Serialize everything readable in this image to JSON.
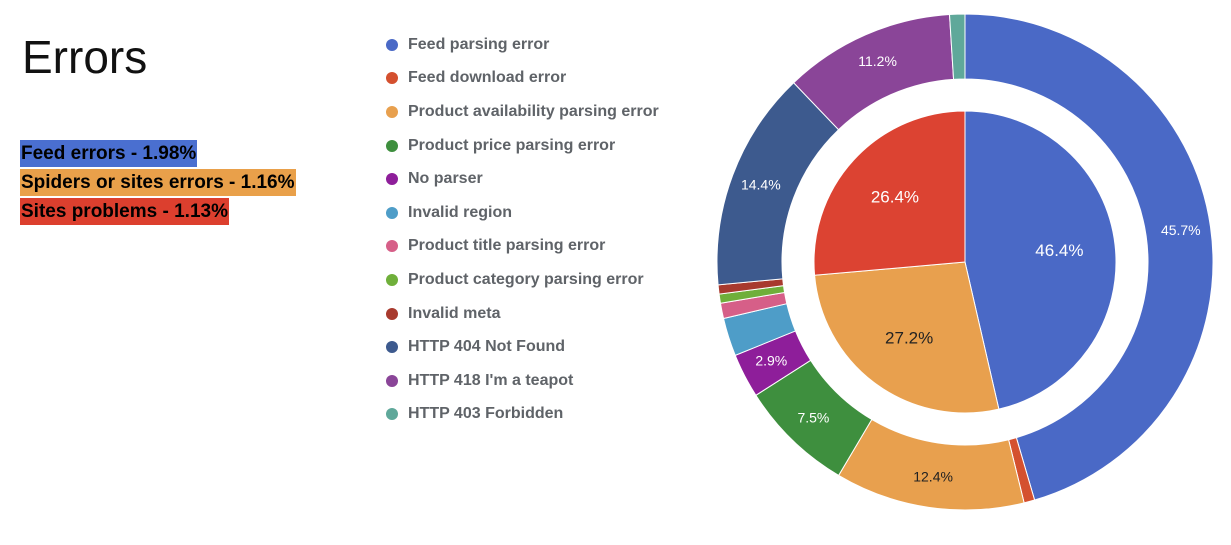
{
  "title": "Errors",
  "summary": [
    {
      "text": "Feed errors - 1.98%",
      "color": "#4a6fd0"
    },
    {
      "text": "Spiders or sites errors - 1.16%",
      "color": "#e9a04a"
    },
    {
      "text": "Sites problems - 1.13%",
      "color": "#dc3f2e"
    }
  ],
  "chart_data": {
    "type": "pie",
    "subtype": "nested-donut",
    "legend": [
      {
        "label": "Feed parsing error",
        "color": "#4a69c6"
      },
      {
        "label": "Feed download error",
        "color": "#d4502f"
      },
      {
        "label": "Product availability parsing error",
        "color": "#e8a04e"
      },
      {
        "label": "Product price parsing error",
        "color": "#3e8f3e"
      },
      {
        "label": "No parser",
        "color": "#8e1e9a"
      },
      {
        "label": "Invalid region",
        "color": "#4e9dc8"
      },
      {
        "label": "Product title parsing error",
        "color": "#d65f88"
      },
      {
        "label": "Product category parsing error",
        "color": "#6faf3a"
      },
      {
        "label": "Invalid meta",
        "color": "#a83a2e"
      },
      {
        "label": "HTTP 404 Not Found",
        "color": "#3d5a8e"
      },
      {
        "label": "HTTP 418 I'm a teapot",
        "color": "#8a4598"
      },
      {
        "label": "HTTP 403 Forbidden",
        "color": "#5fa89a"
      }
    ],
    "inner_ring": {
      "slices": [
        {
          "name": "Feed errors",
          "value": 46.4,
          "label": "46.4%",
          "color": "#4a69c6",
          "label_color": "#ffffff"
        },
        {
          "name": "Spiders or sites errors",
          "value": 27.2,
          "label": "27.2%",
          "color": "#e8a04e",
          "label_color": "#222222"
        },
        {
          "name": "Sites problems",
          "value": 26.4,
          "label": "26.4%",
          "color": "#dc4332",
          "label_color": "#ffffff"
        }
      ]
    },
    "outer_ring": {
      "slices": [
        {
          "name": "Feed parsing error",
          "value": 45.7,
          "label": "45.7%",
          "color": "#4a69c6",
          "label_color": "#ffffff"
        },
        {
          "name": "Feed download error",
          "value": 0.7,
          "label": "",
          "color": "#d4502f",
          "label_color": "#ffffff"
        },
        {
          "name": "Product availability parsing error",
          "value": 12.4,
          "label": "12.4%",
          "color": "#e8a04e",
          "label_color": "#222222"
        },
        {
          "name": "Product price parsing error",
          "value": 7.5,
          "label": "7.5%",
          "color": "#3e8f3e",
          "label_color": "#ffffff"
        },
        {
          "name": "No parser",
          "value": 2.9,
          "label": "2.9%",
          "color": "#8e1e9a",
          "label_color": "#ffffff"
        },
        {
          "name": "Invalid region",
          "value": 2.5,
          "label": "",
          "color": "#4e9dc8",
          "label_color": "#ffffff"
        },
        {
          "name": "Product title parsing error",
          "value": 1.0,
          "label": "",
          "color": "#d65f88",
          "label_color": "#ffffff"
        },
        {
          "name": "Product category parsing error",
          "value": 0.6,
          "label": "",
          "color": "#6faf3a",
          "label_color": "#ffffff"
        },
        {
          "name": "Invalid meta",
          "value": 0.6,
          "label": "",
          "color": "#a83a2e",
          "label_color": "#ffffff"
        },
        {
          "name": "HTTP 404 Not Found",
          "value": 14.4,
          "label": "14.4%",
          "color": "#3d5a8e",
          "label_color": "#ffffff"
        },
        {
          "name": "HTTP 418 I'm a teapot",
          "value": 11.2,
          "label": "11.2%",
          "color": "#8a4598",
          "label_color": "#ffffff"
        },
        {
          "name": "HTTP 403 Forbidden",
          "value": 1.0,
          "label": "",
          "color": "#5fa89a",
          "label_color": "#ffffff"
        }
      ]
    }
  }
}
